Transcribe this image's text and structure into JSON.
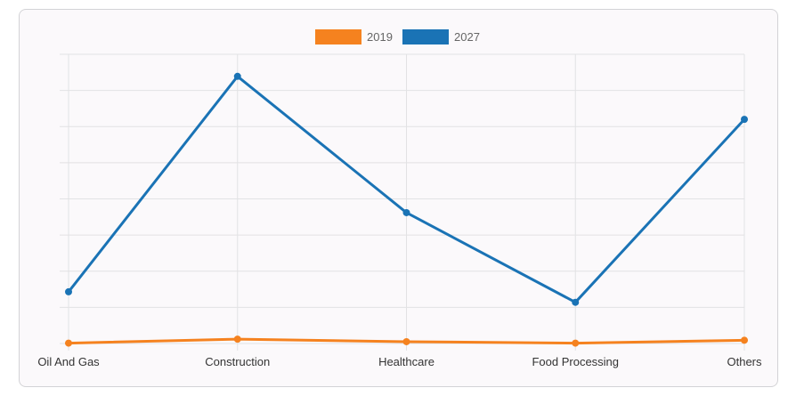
{
  "chart_data": {
    "type": "line",
    "categories": [
      "Oil And Gas",
      "Construction",
      "Healthcare",
      "Food Processing",
      "Others"
    ],
    "series": [
      {
        "name": "2019",
        "color": "#f5821f",
        "values": [
          0.1,
          1.2,
          0.5,
          0.1,
          0.9
        ]
      },
      {
        "name": "2027",
        "color": "#1a73b5",
        "values": [
          14.3,
          73.9,
          36.2,
          11.4,
          62.0
        ]
      }
    ],
    "ylim": [
      0,
      80
    ],
    "y_ticks": [
      0,
      10,
      20,
      30,
      40,
      50,
      60,
      70,
      80
    ],
    "y_tick_labels_shown": false,
    "grid": true,
    "legend": "top-center",
    "title": "",
    "xlabel": "",
    "ylabel": ""
  }
}
